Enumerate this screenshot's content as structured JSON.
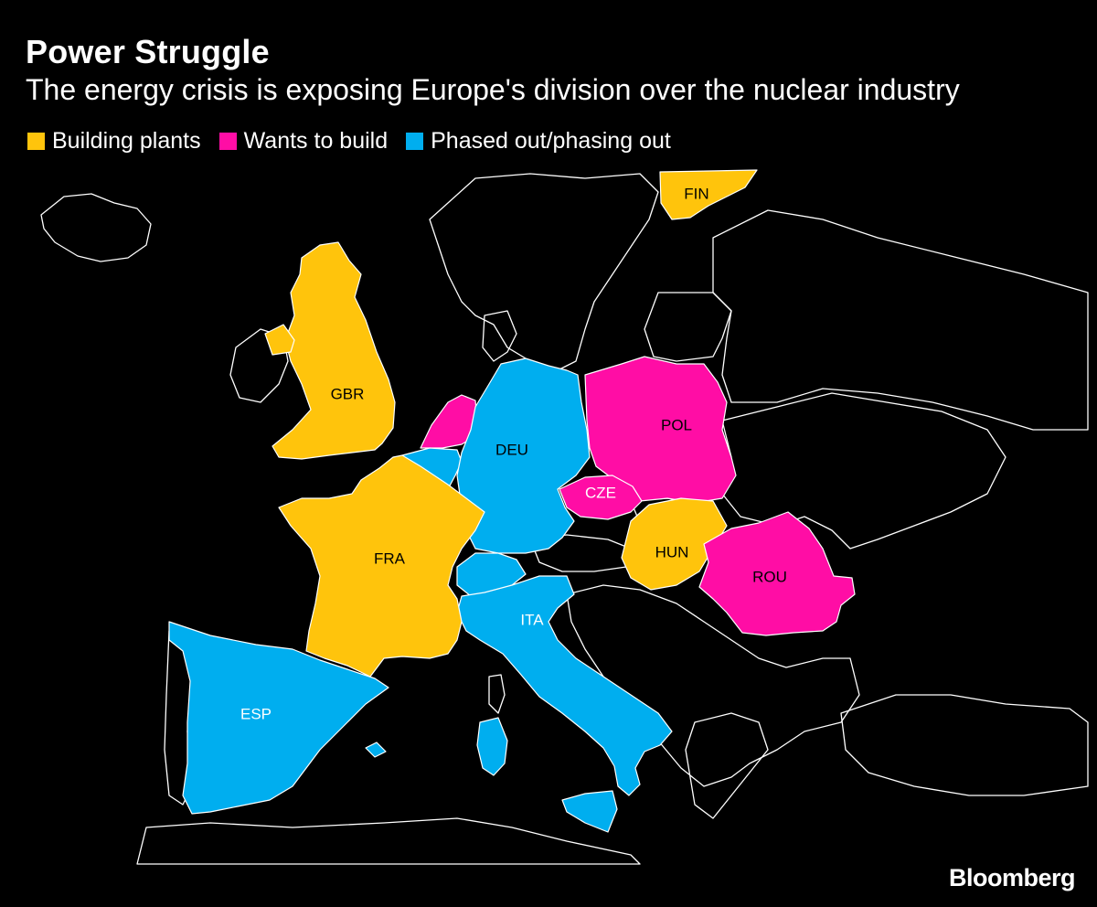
{
  "title": "Power Struggle",
  "subtitle": "The energy crisis is exposing Europe's division over the nuclear industry",
  "legend": [
    {
      "label": "Building plants",
      "color": "#FFC40C"
    },
    {
      "label": "Wants to build",
      "color": "#FF0DA5"
    },
    {
      "label": "Phased out/phasing out",
      "color": "#00AEEF"
    }
  ],
  "countries": {
    "fin": {
      "label": "FIN",
      "status": "Building plants"
    },
    "gbr": {
      "label": "GBR",
      "status": "Building plants"
    },
    "fra": {
      "label": "FRA",
      "status": "Building plants"
    },
    "hun": {
      "label": "HUN",
      "status": "Building plants"
    },
    "pol": {
      "label": "POL",
      "status": "Wants to build"
    },
    "cze": {
      "label": "CZE",
      "status": "Wants to build"
    },
    "rou": {
      "label": "ROU",
      "status": "Wants to build"
    },
    "nld": {
      "status": "Wants to build"
    },
    "deu": {
      "label": "DEU",
      "status": "Phased out/phasing out"
    },
    "ita": {
      "label": "ITA",
      "status": "Phased out/phasing out"
    },
    "esp": {
      "label": "ESP",
      "status": "Phased out/phasing out"
    },
    "bel": {
      "status": "Phased out/phasing out"
    },
    "che": {
      "status": "Phased out/phasing out"
    }
  },
  "colors": {
    "building": "#FFC40C",
    "wants": "#FF0DA5",
    "phased": "#00AEEF",
    "background": "#000000",
    "outline": "#FFFFFF"
  },
  "source_brand": "Bloomberg"
}
